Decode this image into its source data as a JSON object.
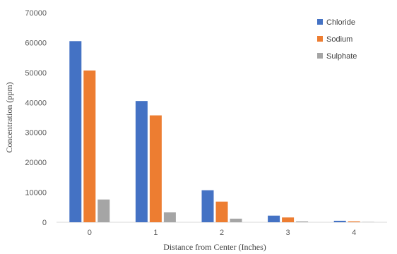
{
  "chart_data": {
    "type": "bar",
    "title": "",
    "xlabel": "Distance from Center (Inches)",
    "ylabel": "Concentration (ppm)",
    "categories": [
      "0",
      "1",
      "2",
      "3",
      "4"
    ],
    "ylim": [
      0,
      70000
    ],
    "yticks": [
      "0",
      "10000",
      "20000",
      "30000",
      "40000",
      "50000",
      "60000",
      "70000"
    ],
    "grid": false,
    "legend_position": "top-right",
    "series": [
      {
        "name": "Chloride",
        "color": "#4472C4",
        "values": [
          60500,
          40500,
          10700,
          2200,
          500
        ]
      },
      {
        "name": "Sodium",
        "color": "#ED7D31",
        "values": [
          50700,
          35700,
          6900,
          1600,
          300
        ]
      },
      {
        "name": "Sulphate",
        "color": "#A5A5A5",
        "values": [
          7600,
          3300,
          1200,
          300,
          100
        ]
      }
    ]
  }
}
